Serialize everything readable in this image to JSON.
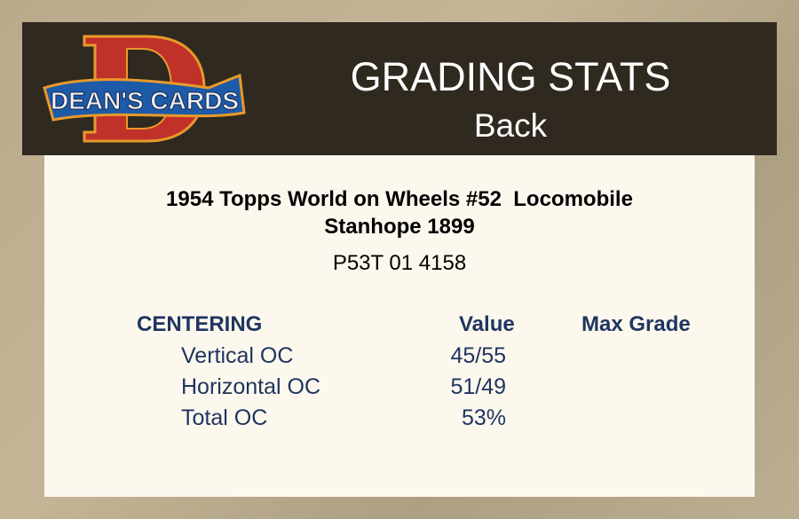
{
  "header": {
    "logo_text": "DEAN'S CARDS",
    "title": "GRADING STATS",
    "subtitle": "Back"
  },
  "card": {
    "name_line1": "1954 Topps World on Wheels #52  Locomobile",
    "name_line2": "Stanhope 1899",
    "cert": "P53T 01 4158"
  },
  "table": {
    "section": "CENTERING",
    "value_header": "Value",
    "max_grade_header": "Max Grade",
    "rows": [
      {
        "label": "Vertical OC",
        "value": "45/55"
      },
      {
        "label": "Horizontal OC",
        "value": "51/49"
      },
      {
        "label": "Total OC",
        "value": "53%"
      }
    ]
  },
  "colors": {
    "header_bg": "#2f2920",
    "panel_bg": "#fdf8ee",
    "table_text": "#1f3560"
  }
}
